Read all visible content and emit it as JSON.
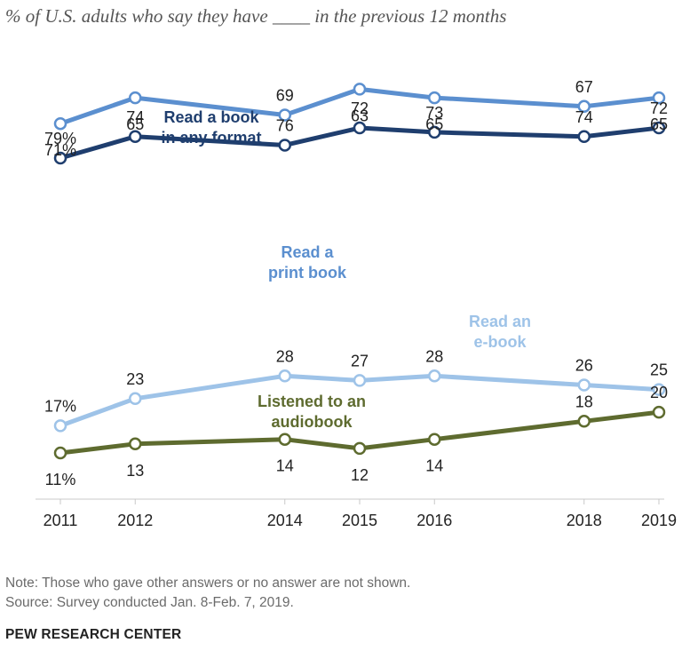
{
  "subtitle": "% of U.S. adults who say they have ____ in the previous 12 months",
  "chart_data": {
    "type": "line",
    "x": [
      2011,
      2012,
      2014,
      2015,
      2016,
      2018,
      2019
    ],
    "x_tick_labels": [
      "2011",
      "2012",
      "2014",
      "2015",
      "2016",
      "2018",
      "2019"
    ],
    "series": [
      {
        "name": "Read a book in any format",
        "label_lines": [
          "Read a book",
          "in any format"
        ],
        "color": "#1f3e6e",
        "values": [
          79,
          74,
          76,
          72,
          73,
          74,
          72
        ],
        "value_labels": [
          "79%",
          "74",
          "76",
          "72",
          "73",
          "74",
          "72"
        ]
      },
      {
        "name": "Read a print book",
        "label_lines": [
          "Read a",
          "print book"
        ],
        "color": "#5b8fcf",
        "values": [
          71,
          65,
          69,
          63,
          65,
          67,
          65
        ],
        "value_labels": [
          "71%",
          "65",
          "69",
          "63",
          "65",
          "67",
          "65"
        ]
      },
      {
        "name": "Read an e-book",
        "label_lines": [
          "Read an",
          "e-book"
        ],
        "color": "#9ec3e8",
        "values": [
          17,
          23,
          28,
          27,
          28,
          26,
          25
        ],
        "value_labels": [
          "17%",
          "23",
          "28",
          "27",
          "28",
          "26",
          "25"
        ]
      },
      {
        "name": "Listened to an audiobook",
        "label_lines": [
          "Listened to an",
          "audiobook"
        ],
        "color": "#5e6b2f",
        "values": [
          11,
          13,
          14,
          12,
          14,
          18,
          20
        ],
        "value_labels": [
          "11%",
          "13",
          "14",
          "12",
          "14",
          "18",
          "20"
        ]
      }
    ]
  },
  "note": "Note: Those who gave other answers or no answer are not shown.",
  "source": "Source: Survey conducted Jan. 8-Feb. 7, 2019.",
  "brand": "PEW RESEARCH CENTER"
}
